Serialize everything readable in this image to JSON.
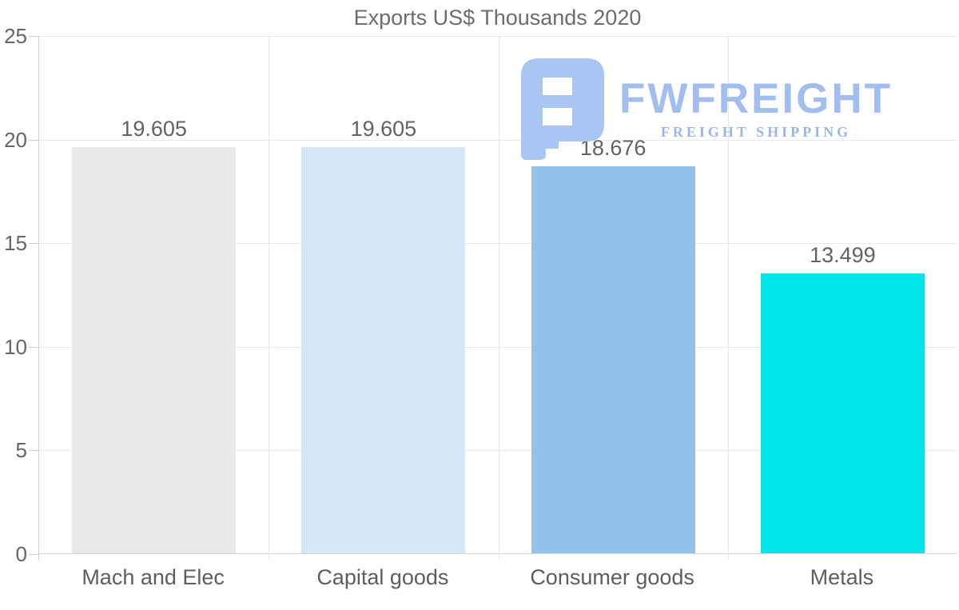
{
  "title": "Exports US$ Thousands 2020",
  "logo": {
    "brand": "FWFREIGHT",
    "tagline": "FREIGHT SHIPPING",
    "mark_color": "#a9c5f1",
    "text_color": "#a1beee",
    "tagline_color": "#9db6e8"
  },
  "chart_data": {
    "type": "bar",
    "title": "Exports US$ Thousands 2020",
    "categories": [
      "Mach and Elec",
      "Capital goods",
      "Consumer goods",
      "Metals"
    ],
    "values": [
      19.605,
      19.605,
      18.676,
      13.499
    ],
    "value_labels": [
      "19.605",
      "19.605",
      "18.676",
      "13.499"
    ],
    "bar_colors": [
      "#e9e9e9",
      "#d6e6f8",
      "#93c1e7",
      "#00e6ea"
    ],
    "ylim": [
      0,
      25
    ],
    "yticks": [
      0,
      5,
      10,
      15,
      20,
      25
    ],
    "xlabel": "",
    "ylabel": "",
    "grid": true,
    "legend": false,
    "colors": {
      "gridline": "#e9e9e9",
      "axis": "#d4d4d4",
      "title_text": "#6d6d6d",
      "tick_text": "#666666",
      "value_text": "#636363",
      "category_text": "#5e5e5e"
    }
  }
}
